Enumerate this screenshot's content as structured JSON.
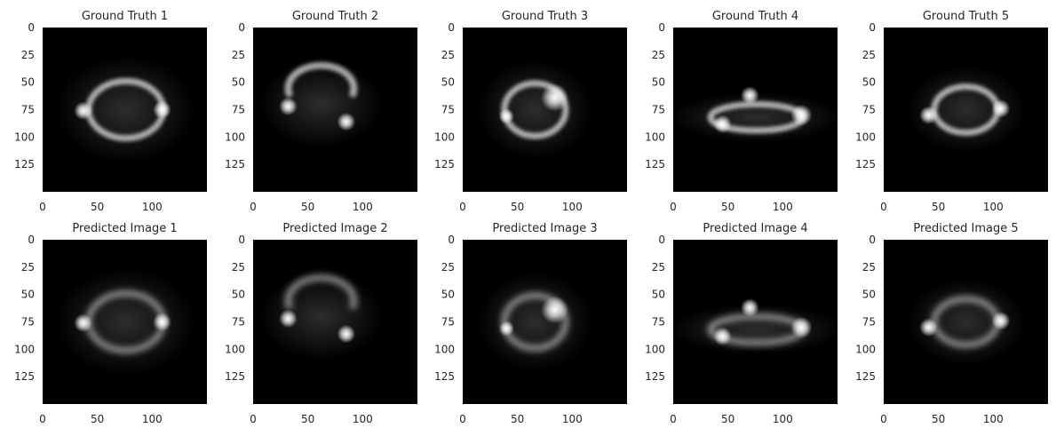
{
  "figure": {
    "rows": [
      {
        "panels": [
          {
            "title": "Ground Truth 1"
          },
          {
            "title": "Ground Truth 2"
          },
          {
            "title": "Ground Truth 3"
          },
          {
            "title": "Ground Truth 4"
          },
          {
            "title": "Ground Truth 5"
          }
        ]
      },
      {
        "panels": [
          {
            "title": "Predicted Image 1"
          },
          {
            "title": "Predicted Image 2"
          },
          {
            "title": "Predicted Image 3"
          },
          {
            "title": "Predicted Image 4"
          },
          {
            "title": "Predicted Image 5"
          }
        ]
      }
    ],
    "x_ticks": [
      "0",
      "50",
      "100"
    ],
    "y_ticks": [
      "0",
      "25",
      "50",
      "75",
      "100",
      "125"
    ],
    "image_background": "#000000",
    "ring_color": "#ffffff"
  }
}
